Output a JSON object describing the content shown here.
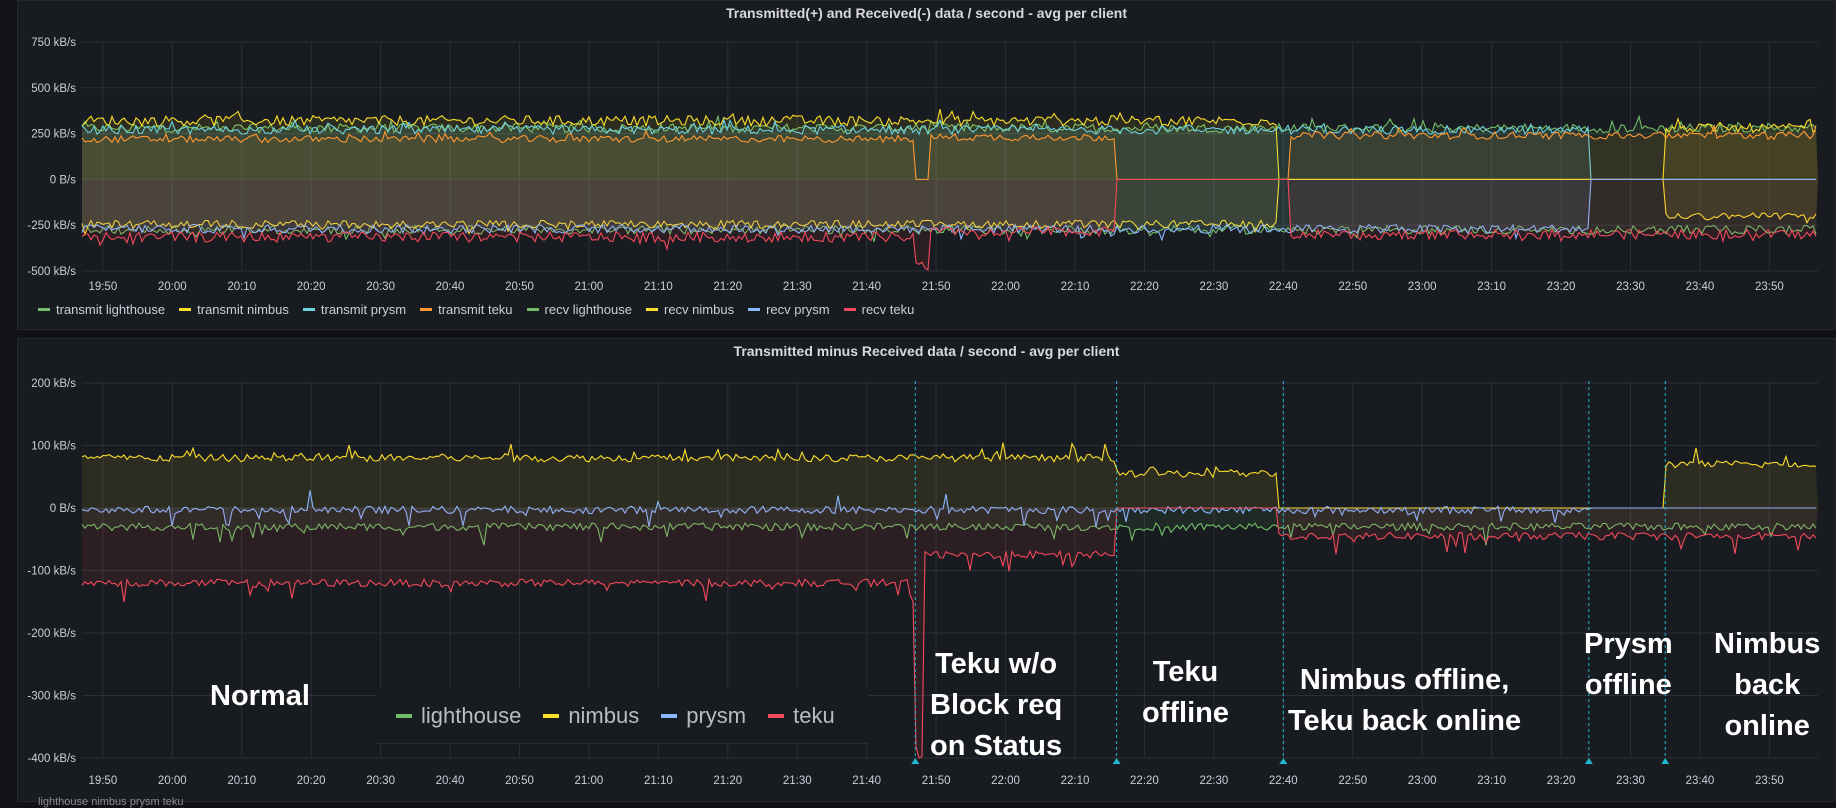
{
  "colors": {
    "lighthouse": "#73bf69",
    "nimbus": "#fade2a",
    "prysm": "#8ab8ff",
    "teku": "#f2495c",
    "transmit_prysm": "#6ed0e0",
    "transmit_teku": "#ff9830",
    "annotation_line": "#1fb5d0"
  },
  "chart_data": [
    {
      "type": "line",
      "title": "Transmitted(+) and Received(-) data / second - avg per client",
      "ylim": [
        -500,
        750
      ],
      "y_ticks": [
        "750 kB/s",
        "500 kB/s",
        "250 kB/s",
        "0 B/s",
        "-250 kB/s",
        "-500 kB/s"
      ],
      "y_tick_values": [
        750,
        500,
        250,
        0,
        -250,
        -500
      ],
      "x_ticks": [
        "19:50",
        "20:00",
        "20:10",
        "20:20",
        "20:30",
        "20:40",
        "20:50",
        "21:00",
        "21:10",
        "21:20",
        "21:30",
        "21:40",
        "21:50",
        "22:00",
        "22:10",
        "22:20",
        "22:30",
        "22:40",
        "22:50",
        "23:00",
        "23:10",
        "23:20",
        "23:30",
        "23:40",
        "23:50"
      ],
      "x_range": [
        "19:47",
        "23:57"
      ],
      "legend_placement": "bottom",
      "series": [
        {
          "name": "transmit lighthouse",
          "key": "lighthouse",
          "segments": [
            {
              "from": "19:47",
              "to": "23:57",
              "value": 280
            }
          ]
        },
        {
          "name": "transmit nimbus",
          "key": "nimbus",
          "segments": [
            {
              "from": "19:47",
              "to": "22:39",
              "value": 320
            },
            {
              "from": "22:39",
              "to": "23:35",
              "value": 0
            },
            {
              "from": "23:35",
              "to": "23:57",
              "value": 280
            }
          ]
        },
        {
          "name": "transmit prysm",
          "key": "transmit_prysm",
          "segments": [
            {
              "from": "19:47",
              "to": "23:24",
              "value": 270
            },
            {
              "from": "23:24",
              "to": "23:57",
              "value": 0
            }
          ]
        },
        {
          "name": "transmit teku",
          "key": "transmit_teku",
          "segments": [
            {
              "from": "19:47",
              "to": "21:47",
              "value": 220
            },
            {
              "from": "21:47",
              "to": "21:49",
              "value": 0
            },
            {
              "from": "21:49",
              "to": "22:16",
              "value": 230
            },
            {
              "from": "22:16",
              "to": "22:41",
              "value": 0
            },
            {
              "from": "22:41",
              "to": "23:57",
              "value": 240
            }
          ]
        },
        {
          "name": "recv lighthouse",
          "key": "lighthouse",
          "segments": [
            {
              "from": "19:47",
              "to": "23:57",
              "value": -275
            }
          ]
        },
        {
          "name": "recv nimbus",
          "key": "nimbus",
          "segments": [
            {
              "from": "19:47",
              "to": "22:39",
              "value": -245
            },
            {
              "from": "22:39",
              "to": "23:35",
              "value": 0
            },
            {
              "from": "23:35",
              "to": "23:57",
              "value": -200
            }
          ]
        },
        {
          "name": "recv prysm",
          "key": "prysm",
          "segments": [
            {
              "from": "19:47",
              "to": "23:24",
              "value": -270
            },
            {
              "from": "23:24",
              "to": "23:57",
              "value": 0
            }
          ]
        },
        {
          "name": "recv teku",
          "key": "teku",
          "segments": [
            {
              "from": "19:47",
              "to": "21:47",
              "value": -315
            },
            {
              "from": "21:47",
              "to": "21:49",
              "value": -480
            },
            {
              "from": "21:49",
              "to": "22:16",
              "value": -285
            },
            {
              "from": "22:16",
              "to": "22:41",
              "value": 0
            },
            {
              "from": "22:41",
              "to": "23:57",
              "value": -300
            }
          ]
        }
      ]
    },
    {
      "type": "line",
      "title": "Transmitted minus Received data / second - avg per client",
      "ylim": [
        -400,
        200
      ],
      "y_ticks": [
        "200 kB/s",
        "100 kB/s",
        "0 B/s",
        "-100 kB/s",
        "-200 kB/s",
        "-300 kB/s",
        "-400 kB/s"
      ],
      "y_tick_values": [
        200,
        100,
        0,
        -100,
        -200,
        -300,
        -400
      ],
      "x_ticks": [
        "19:50",
        "20:00",
        "20:10",
        "20:20",
        "20:30",
        "20:40",
        "20:50",
        "21:00",
        "21:10",
        "21:20",
        "21:30",
        "21:40",
        "21:50",
        "22:00",
        "22:10",
        "22:20",
        "22:30",
        "22:40",
        "22:50",
        "23:00",
        "23:10",
        "23:20",
        "23:30",
        "23:40",
        "23:50"
      ],
      "x_range": [
        "19:47",
        "23:57"
      ],
      "legend": [
        "lighthouse",
        "nimbus",
        "prysm",
        "teku"
      ],
      "series": [
        {
          "name": "lighthouse",
          "key": "lighthouse",
          "segments": [
            {
              "from": "19:47",
              "to": "23:57",
              "value": -30
            }
          ]
        },
        {
          "name": "nimbus",
          "key": "nimbus",
          "segments": [
            {
              "from": "19:47",
              "to": "22:16",
              "value": 80
            },
            {
              "from": "22:16",
              "to": "22:39",
              "value": 55
            },
            {
              "from": "22:39",
              "to": "23:35",
              "value": 0
            },
            {
              "from": "23:35",
              "to": "23:57",
              "value": 70
            }
          ]
        },
        {
          "name": "prysm",
          "key": "prysm",
          "segments": [
            {
              "from": "19:47",
              "to": "23:24",
              "value": -3
            },
            {
              "from": "23:24",
              "to": "23:57",
              "value": 0
            }
          ]
        },
        {
          "name": "teku",
          "key": "teku",
          "segments": [
            {
              "from": "19:47",
              "to": "21:47",
              "value": -120
            },
            {
              "from": "21:47",
              "to": "21:48",
              "value": -400
            },
            {
              "from": "21:48",
              "to": "22:16",
              "value": -75
            },
            {
              "from": "22:16",
              "to": "22:39",
              "value": 0
            },
            {
              "from": "22:39",
              "to": "23:57",
              "value": -45
            }
          ]
        }
      ],
      "annotation_times": [
        "21:47",
        "22:16",
        "22:40",
        "23:24",
        "23:35"
      ],
      "annotations": [
        {
          "text": "Normal"
        },
        {
          "text": "Teku w/o\nBlock req\non Status"
        },
        {
          "text": "Teku\noffline"
        },
        {
          "text": "Nimbus offline,\nTeku back online"
        },
        {
          "text": "Prysm\noffline"
        },
        {
          "text": "Nimbus\nback\nonline"
        }
      ]
    }
  ],
  "footer_text": "lighthouse    nimbus    prysm    teku"
}
